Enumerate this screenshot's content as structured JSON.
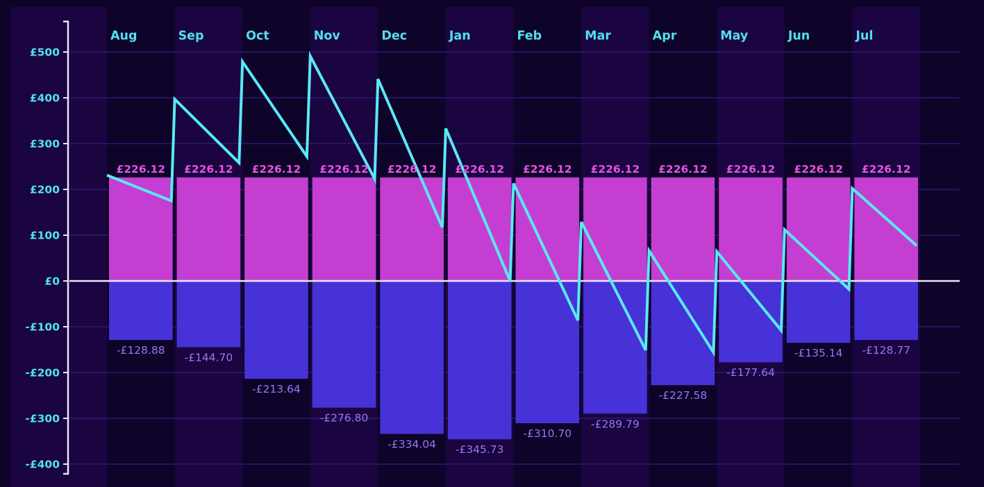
{
  "colors": {
    "page_bg": "#0e0329",
    "panel_bg": "#150234",
    "band_dark": "#0e0329",
    "band_light": "#1a0540",
    "gridline": "#2a1a74",
    "axis": "#e8e8f4",
    "income_bar": "#c43fd1",
    "outgoing_bar": "#4632d6",
    "balance_line": "#5ae8f4",
    "tick_text": "#52dff0",
    "income_text": "#e553e2",
    "outgoing_text": "#9579f0"
  },
  "chart_data": {
    "type": "bar",
    "title": "",
    "xlabel": "",
    "ylabel": "",
    "ylim": [
      -420,
      560
    ],
    "y_ticks": [
      500,
      400,
      300,
      200,
      100,
      0,
      -100,
      -200,
      -300,
      -400
    ],
    "y_tick_labels": [
      "£500",
      "£400",
      "£300",
      "£200",
      "£100",
      "£0",
      "-£100",
      "-£200",
      "-£300",
      "-£400"
    ],
    "grid": true,
    "legend": "none",
    "categories": [
      "Aug",
      "Sep",
      "Oct",
      "Nov",
      "Dec",
      "Jan",
      "Feb",
      "Mar",
      "Apr",
      "May",
      "Jun",
      "Jul"
    ],
    "series": [
      {
        "kind": "bar",
        "values": [
          226.12,
          226.12,
          226.12,
          226.12,
          226.12,
          226.12,
          226.12,
          226.12,
          226.12,
          226.12,
          226.12,
          226.12
        ],
        "labels": [
          "£226.12",
          "£226.12",
          "£226.12",
          "£226.12",
          "£226.12",
          "£226.12",
          "£226.12",
          "£226.12",
          "£226.12",
          "£226.12",
          "£226.12",
          "£226.12"
        ]
      },
      {
        "kind": "bar",
        "values": [
          -128.88,
          -144.7,
          -213.64,
          -276.8,
          -334.04,
          -345.73,
          -310.7,
          -289.79,
          -227.58,
          -177.64,
          -135.14,
          -128.77
        ],
        "labels": [
          "-£128.88",
          "-£144.70",
          "-£213.64",
          "-£276.80",
          "-£334.04",
          "-£345.73",
          "-£310.70",
          "-£289.79",
          "-£227.58",
          "-£177.64",
          "-£135.14",
          "-£128.77"
        ]
      },
      {
        "kind": "line",
        "points": [
          [
            0.0,
            231
          ],
          [
            0.95,
            175
          ],
          [
            1.0,
            397
          ],
          [
            1.95,
            258
          ],
          [
            2.0,
            479
          ],
          [
            2.95,
            272
          ],
          [
            3.0,
            491
          ],
          [
            3.95,
            223
          ],
          [
            4.0,
            441
          ],
          [
            4.95,
            117
          ],
          [
            5.0,
            333
          ],
          [
            5.95,
            0
          ],
          [
            6.0,
            213
          ],
          [
            6.95,
            -86
          ],
          [
            7.0,
            129
          ],
          [
            7.95,
            -151
          ],
          [
            8.0,
            66
          ],
          [
            8.95,
            -156
          ],
          [
            9.0,
            64
          ],
          [
            9.95,
            -108
          ],
          [
            10.0,
            112
          ],
          [
            10.95,
            -18
          ],
          [
            11.0,
            202
          ],
          [
            11.95,
            77
          ]
        ]
      }
    ]
  }
}
